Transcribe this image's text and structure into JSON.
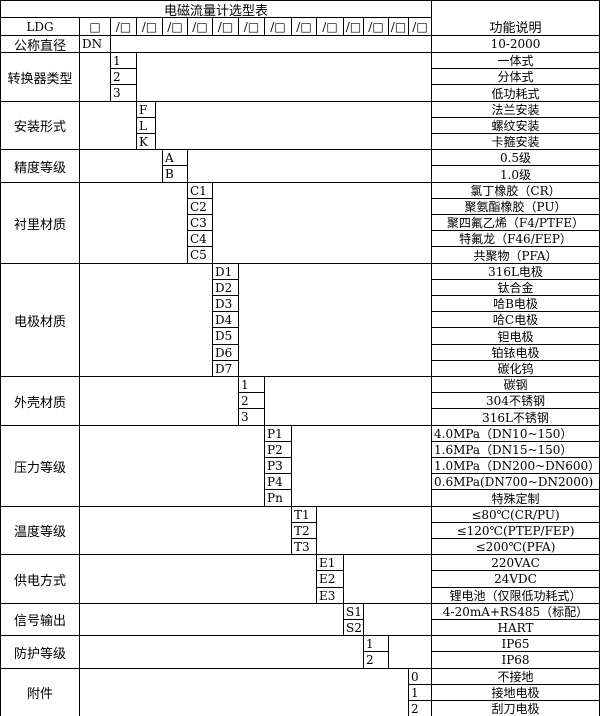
{
  "title": "电磁流量计选型表",
  "function_header": "功能说明",
  "model_row": {
    "prefix": "LDG",
    "first_box": "□",
    "slot": "/□",
    "slot_count": 13
  },
  "nominal": {
    "label": "公称直径",
    "code": "DN",
    "desc": "10-2000"
  },
  "groups": [
    {
      "label": "转换器类型",
      "codes": [
        "1",
        "2",
        "3"
      ],
      "descs": [
        "一体式",
        "分体式",
        "低功耗式"
      ]
    },
    {
      "label": "安装形式",
      "codes": [
        "F",
        "L",
        "K"
      ],
      "descs": [
        "法兰安装",
        "螺纹安装",
        "卡箍安装"
      ]
    },
    {
      "label": "精度等级",
      "codes": [
        "A",
        "B"
      ],
      "descs": [
        "0.5级",
        "1.0级"
      ]
    },
    {
      "label": "衬里材质",
      "codes": [
        "C1",
        "C2",
        "C3",
        "C4",
        "C5"
      ],
      "descs": [
        "氯丁橡胶（CR）",
        "聚氨酯橡胶（PU）",
        "聚四氟乙烯（F4/PTFE）",
        "特氟龙（F46/FEP）",
        "共聚物（PFA）"
      ]
    },
    {
      "label": "电极材质",
      "codes": [
        "D1",
        "D2",
        "D3",
        "D4",
        "D5",
        "D6",
        "D7"
      ],
      "descs": [
        "316L电极",
        "钛合金",
        "哈B电极",
        "哈C电极",
        "钽电极",
        "铂铱电极",
        "碳化钨"
      ]
    },
    {
      "label": "外壳材质",
      "codes": [
        "1",
        "2",
        "3"
      ],
      "descs": [
        "碳钢",
        "304不锈钢",
        "316L不锈钢"
      ]
    },
    {
      "label": "压力等级",
      "codes": [
        "P1",
        "P2",
        "P3",
        "P4",
        "Pn"
      ],
      "descs": [
        "4.0MPa（DN10~150）",
        "1.6MPa（DN15~150）",
        "1.0MPa（DN200~DN600）",
        "0.6MPa(DN700~DN2000)",
        "特殊定制"
      ]
    },
    {
      "label": "温度等级",
      "codes": [
        "T1",
        "T2",
        "T3"
      ],
      "descs": [
        "≤80℃(CR/PU)",
        "≤120℃(PTEP/FEP)",
        "≤200℃(PFA)"
      ]
    },
    {
      "label": "供电方式",
      "codes": [
        "E1",
        "E2",
        "E3"
      ],
      "descs": [
        "220VAC",
        "24VDC",
        "锂电池（仅限低功耗式）"
      ]
    },
    {
      "label": "信号输出",
      "codes": [
        "S1",
        "S2"
      ],
      "descs": [
        "4-20mA+RS485（标配）",
        "HART"
      ]
    },
    {
      "label": "防护等级",
      "codes": [
        "1",
        "2"
      ],
      "descs": [
        "IP65",
        "IP68"
      ]
    },
    {
      "label": "附件",
      "codes": [
        "0",
        "1",
        "2"
      ],
      "descs": [
        "不接地",
        "接地电极",
        "刮刀电极"
      ]
    }
  ]
}
